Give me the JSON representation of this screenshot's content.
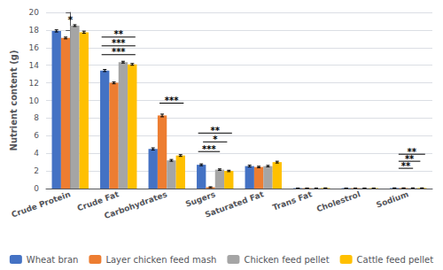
{
  "chart_data": {
    "type": "bar",
    "categories": [
      "Crude Protein",
      "Crude Fat",
      "Carbohydrates",
      "Sugers",
      "Saturated Fat",
      "Trans Fat",
      "Cholestrol",
      "Sodium"
    ],
    "series": [
      {
        "name": "Wheat bran",
        "color": "#4472C4",
        "values": [
          17.9,
          13.4,
          4.5,
          2.7,
          2.55,
          0.05,
          0.05,
          0.06
        ],
        "errors": [
          0.12,
          0.12,
          0.12,
          0.1,
          0.1,
          0.005,
          0.005,
          0.005
        ]
      },
      {
        "name": "Layer chicken feed mash",
        "color": "#ED7D31",
        "values": [
          17.1,
          12.0,
          8.3,
          0.15,
          2.45,
          0.05,
          0.05,
          0.06
        ],
        "errors": [
          0.1,
          0.1,
          0.15,
          0.05,
          0.08,
          0.005,
          0.005,
          0.005
        ]
      },
      {
        "name": "Chicken feed pellet",
        "color": "#A5A5A5",
        "values": [
          18.5,
          14.35,
          3.2,
          2.15,
          2.55,
          0.05,
          0.05,
          0.06
        ],
        "errors": [
          0.1,
          0.1,
          0.1,
          0.08,
          0.08,
          0.005,
          0.005,
          0.005
        ]
      },
      {
        "name": "Cattle feed pellet",
        "color": "#FFC000",
        "values": [
          17.75,
          14.1,
          3.75,
          2.0,
          3.0,
          0.06,
          0.05,
          0.06
        ],
        "errors": [
          0.12,
          0.1,
          0.1,
          0.08,
          0.1,
          0.005,
          0.005,
          0.005
        ]
      }
    ],
    "ylabel": "Nutrient content (g)",
    "ylim": [
      0,
      20
    ],
    "yticks": [
      0,
      2,
      4,
      6,
      8,
      10,
      12,
      14,
      16,
      18,
      20
    ],
    "grid": true,
    "legend": "bottom",
    "annotations": [
      {
        "category": "Crude Protein",
        "y": 18.85,
        "text": "*"
      },
      {
        "category": "Crude Fat",
        "y": 17.2,
        "text": "**",
        "span": [
          -0.35,
          0.35
        ]
      },
      {
        "category": "Crude Fat",
        "y": 16.2,
        "text": "***",
        "span": [
          -0.35,
          0.35
        ]
      },
      {
        "category": "Crude Fat",
        "y": 15.2,
        "text": "***",
        "span": [
          -0.35,
          0.35
        ]
      },
      {
        "category": "Carbohydrates",
        "y": 9.7,
        "text": "***",
        "span": [
          -0.15,
          0.35
        ]
      },
      {
        "category": "Sugers",
        "y": 6.3,
        "text": "**",
        "span": [
          -0.35,
          0.35
        ]
      },
      {
        "category": "Sugers",
        "y": 5.3,
        "text": "*",
        "span": [
          -0.25,
          0.25
        ]
      },
      {
        "category": "Sugers",
        "y": 4.2,
        "text": "***",
        "span": [
          -0.35,
          0.1
        ]
      },
      {
        "category": "Sodium",
        "y": 3.9,
        "text": "**",
        "span": [
          -0.2,
          0.35
        ]
      },
      {
        "category": "Sodium",
        "y": 3.1,
        "text": "**",
        "span": [
          -0.2,
          0.25
        ]
      },
      {
        "category": "Sodium",
        "y": 2.3,
        "text": "**",
        "span": [
          -0.2,
          0.1
        ]
      }
    ]
  }
}
